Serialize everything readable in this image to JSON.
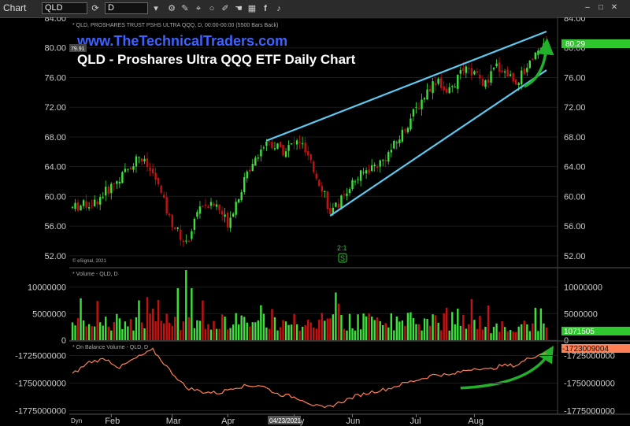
{
  "toolbar": {
    "chart_label": "Chart",
    "symbol": "QLD",
    "interval": "D",
    "icons": [
      "refresh-icon",
      "down-arrow-icon",
      "gear-icon",
      "draw-icon",
      "cursor-icon",
      "circle-icon",
      "pen-icon",
      "hand-icon",
      "grid-icon",
      "facebook-icon",
      "twitter-icon",
      "window-minimize-icon",
      "window-maximize-icon",
      "window-close-icon"
    ]
  },
  "colors": {
    "background": "#000000",
    "up": "#3be23b",
    "down": "#c41212",
    "channel": "#5ec8ee",
    "arrow": "#23b02a",
    "obv": "#ff8055",
    "site_title": "#3e62ff",
    "price_badge": "#2ec72e",
    "obv_badge": "#ff8055"
  },
  "price_pane": {
    "info": "* QLD, PROSHARES TRUST PSHS ULTRA QQQ, D, 00:00-00:00 (5500 Bars Back)",
    "site": "www.TheTechnicalTraders.com",
    "heading": "QLD - Proshares Ultra QQQ ETF Daily Chart",
    "copyright": "© eSignal, 2021",
    "left_last": "79.91",
    "right_last": "80.29",
    "ratio_label": "2:1",
    "earnings_marker": "S"
  },
  "volume_pane": {
    "title": "* Volume - QLD, D",
    "badge": "1071505"
  },
  "obv_pane": {
    "title": "* On Balance Volume - QLD, D",
    "badge": "-1723009004"
  },
  "date_axis": {
    "dyn_label": "Dyn",
    "cursor_date": "04/23/2021"
  },
  "chart_data": {
    "type": "candlestick",
    "x_labels": [
      "Feb",
      "Mar",
      "Apr",
      "May",
      "Jun",
      "Jul",
      "Aug"
    ],
    "price": {
      "y_ticks": [
        "84.00",
        "80.00",
        "76.00",
        "72.00",
        "68.00",
        "64.00",
        "60.00",
        "56.00",
        "52.00"
      ],
      "ylim": [
        50.5,
        84.0
      ],
      "anchors": [
        [
          0,
          58.5
        ],
        [
          8,
          59.2
        ],
        [
          18,
          62.8
        ],
        [
          24,
          65.5
        ],
        [
          30,
          62.4
        ],
        [
          35,
          57.0
        ],
        [
          41,
          53.5
        ],
        [
          46,
          58.8
        ],
        [
          52,
          58.8
        ],
        [
          56,
          56.5
        ],
        [
          60,
          60.2
        ],
        [
          65,
          64.8
        ],
        [
          70,
          67.5
        ],
        [
          76,
          66.2
        ],
        [
          82,
          67.5
        ],
        [
          86,
          64.2
        ],
        [
          91,
          60.5
        ],
        [
          93,
          57.3
        ],
        [
          100,
          61.5
        ],
        [
          106,
          63.5
        ],
        [
          112,
          64.8
        ],
        [
          117,
          67.3
        ],
        [
          124,
          71.8
        ],
        [
          129,
          74.8
        ],
        [
          132,
          75.9
        ],
        [
          135,
          73.5
        ],
        [
          141,
          77.0
        ],
        [
          145,
          76.5
        ],
        [
          149,
          75.0
        ],
        [
          153,
          77.6
        ],
        [
          157,
          76.5
        ],
        [
          160,
          75.4
        ],
        [
          163,
          76.8
        ],
        [
          166,
          79.0
        ],
        [
          171,
          80.6
        ]
      ],
      "channel_upper": [
        [
          70,
          67.5
        ],
        [
          171,
          82.2
        ]
      ],
      "channel_lower": [
        [
          93,
          57.4
        ],
        [
          171,
          77.0
        ]
      ]
    },
    "volume": {
      "y_ticks": [
        "10000000",
        "5000000",
        "0"
      ],
      "ylim": [
        0,
        13500000
      ]
    },
    "obv": {
      "y_ticks": [
        "-1725000000",
        "-1750000000",
        "-1775000000"
      ],
      "ylim": [
        -1777500000,
        -1712500000
      ],
      "anchors": [
        [
          0,
          -1742000000
        ],
        [
          6,
          -1731000000
        ],
        [
          12,
          -1728000000
        ],
        [
          17,
          -1736000000
        ],
        [
          22,
          -1728500000
        ],
        [
          29,
          -1720000000
        ],
        [
          35,
          -1738000000
        ],
        [
          41,
          -1754000000
        ],
        [
          47,
          -1758000000
        ],
        [
          53,
          -1759000000
        ],
        [
          58,
          -1754000000
        ],
        [
          63,
          -1752500000
        ],
        [
          68,
          -1752000000
        ],
        [
          74,
          -1760000000
        ],
        [
          79,
          -1762000000
        ],
        [
          83,
          -1765000000
        ],
        [
          87,
          -1770000000
        ],
        [
          91,
          -1773000000
        ],
        [
          96,
          -1768000000
        ],
        [
          102,
          -1762000000
        ],
        [
          108,
          -1758000000
        ],
        [
          114,
          -1755000000
        ],
        [
          120,
          -1750000000
        ],
        [
          126,
          -1746000000
        ],
        [
          131,
          -1742000000
        ],
        [
          136,
          -1743000000
        ],
        [
          141,
          -1739000000
        ],
        [
          146,
          -1736000000
        ],
        [
          150,
          -1738000000
        ],
        [
          155,
          -1734000000
        ],
        [
          160,
          -1734000000
        ],
        [
          165,
          -1727000000
        ],
        [
          171,
          -1722000000
        ]
      ]
    }
  }
}
